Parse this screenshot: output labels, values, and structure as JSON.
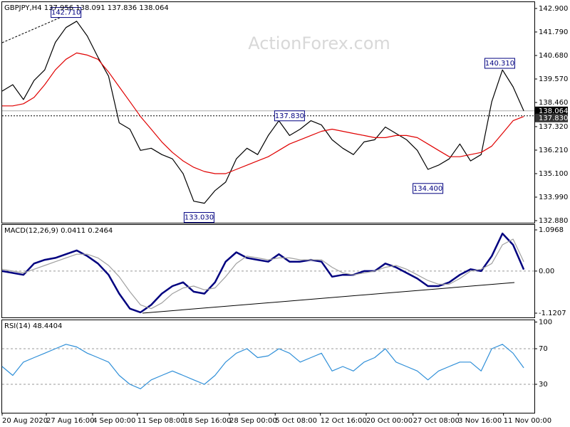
{
  "chart_data": [
    {
      "type": "line",
      "title": "GBPJPY,H4  137.956 138.091 137.836 138.064",
      "watermark": "ActionForex.com",
      "x": [
        0,
        2,
        4,
        6,
        8,
        10,
        12,
        14,
        16,
        18,
        20,
        22,
        24,
        26,
        28,
        30,
        32,
        34,
        36,
        38,
        40,
        42,
        44,
        46,
        48,
        50,
        52,
        54,
        56,
        58,
        60,
        62,
        64,
        66,
        68,
        70,
        72,
        74,
        76,
        78,
        80,
        82,
        84,
        86,
        88,
        90,
        92,
        94,
        96,
        98
      ],
      "xlim": [
        0,
        100
      ],
      "ylim": [
        132.78,
        143.2
      ],
      "yticks": [
        {
          "value": 142.9,
          "label": "142.900"
        },
        {
          "value": 141.79,
          "label": "141.790"
        },
        {
          "value": 140.68,
          "label": "140.680"
        },
        {
          "value": 139.57,
          "label": "139.570"
        },
        {
          "value": 138.46,
          "label": "138.460"
        },
        {
          "value": 137.32,
          "label": "137.320"
        },
        {
          "value": 136.21,
          "label": "136.210"
        },
        {
          "value": 135.1,
          "label": "135.100"
        },
        {
          "value": 133.99,
          "label": "133.990"
        },
        {
          "value": 132.88,
          "label": "132.880"
        }
      ],
      "series": [
        {
          "name": "GBPJPY",
          "color": "#000000",
          "values": [
            139.0,
            139.3,
            138.6,
            139.5,
            140.0,
            141.3,
            142.0,
            142.3,
            141.6,
            140.6,
            139.7,
            137.5,
            137.2,
            136.2,
            136.3,
            136.0,
            135.8,
            135.1,
            133.8,
            133.7,
            134.3,
            134.7,
            135.8,
            136.3,
            136.0,
            136.9,
            137.6,
            136.9,
            137.2,
            137.6,
            137.4,
            136.7,
            136.3,
            136.0,
            136.6,
            136.7,
            137.3,
            137.0,
            136.7,
            136.2,
            135.3,
            135.5,
            135.8,
            136.5,
            135.7,
            136.0,
            138.5,
            140.0,
            139.2,
            138.064
          ]
        },
        {
          "name": "MA",
          "color": "#e00000",
          "values": [
            138.3,
            138.3,
            138.4,
            138.7,
            139.3,
            140.0,
            140.5,
            140.8,
            140.7,
            140.5,
            139.9,
            139.2,
            138.5,
            137.8,
            137.2,
            136.6,
            136.1,
            135.7,
            135.4,
            135.2,
            135.1,
            135.1,
            135.3,
            135.5,
            135.7,
            135.9,
            136.2,
            136.5,
            136.7,
            136.9,
            137.1,
            137.2,
            137.1,
            137.0,
            136.9,
            136.8,
            136.8,
            136.9,
            136.9,
            136.8,
            136.5,
            136.2,
            135.9,
            135.9,
            136.0,
            136.1,
            136.4,
            137.0,
            137.6,
            137.8
          ]
        }
      ],
      "current_price": 138.064,
      "level_line": {
        "value": 137.83,
        "label": "137.830"
      },
      "annotations": [
        {
          "x": 12,
          "value": 142.71,
          "label": "142.710"
        },
        {
          "x": 37,
          "value": 133.03,
          "label": "133.030"
        },
        {
          "x": 54,
          "value": 137.83,
          "label": "137.830"
        },
        {
          "x": 80,
          "value": 134.4,
          "label": "134.400"
        },
        {
          "x": 93.5,
          "value": 140.31,
          "label": "140.310"
        }
      ]
    },
    {
      "type": "line",
      "title": "MACD(12,26,9) 0.0411 0.2464",
      "x": [
        0,
        2,
        4,
        6,
        8,
        10,
        12,
        14,
        16,
        18,
        20,
        22,
        24,
        26,
        28,
        30,
        32,
        34,
        36,
        38,
        40,
        42,
        44,
        46,
        48,
        50,
        52,
        54,
        56,
        58,
        60,
        62,
        64,
        66,
        68,
        70,
        72,
        74,
        76,
        78,
        80,
        82,
        84,
        86,
        88,
        90,
        92,
        94,
        96,
        98
      ],
      "xlim": [
        0,
        100
      ],
      "ylim": [
        -1.234,
        1.23
      ],
      "yticks": [
        1.0968,
        {
          "value": 0,
          "label": "0.00"
        },
        -1.1207
      ],
      "levels": [
        0
      ],
      "series": [
        {
          "name": "MACD",
          "color": "#00007f",
          "values": [
            0.0,
            -0.05,
            -0.1,
            0.2,
            0.3,
            0.35,
            0.45,
            0.55,
            0.4,
            0.2,
            -0.1,
            -0.6,
            -1.0,
            -1.1,
            -0.9,
            -0.6,
            -0.4,
            -0.3,
            -0.55,
            -0.6,
            -0.3,
            0.25,
            0.5,
            0.35,
            0.3,
            0.25,
            0.45,
            0.25,
            0.25,
            0.3,
            0.25,
            -0.15,
            -0.1,
            -0.1,
            0.0,
            0.0,
            0.2,
            0.1,
            -0.05,
            -0.2,
            -0.4,
            -0.4,
            -0.3,
            -0.1,
            0.05,
            0.0,
            0.4,
            1.0,
            0.7,
            0.04
          ]
        },
        {
          "name": "Signal",
          "color": "#a0a0a0",
          "values": [
            0.05,
            0.0,
            -0.05,
            0.05,
            0.15,
            0.25,
            0.35,
            0.45,
            0.45,
            0.35,
            0.15,
            -0.15,
            -0.55,
            -0.9,
            -1.0,
            -0.85,
            -0.6,
            -0.45,
            -0.4,
            -0.5,
            -0.45,
            -0.15,
            0.2,
            0.4,
            0.35,
            0.3,
            0.35,
            0.35,
            0.3,
            0.3,
            0.3,
            0.1,
            -0.05,
            -0.1,
            -0.05,
            0.0,
            0.1,
            0.15,
            0.05,
            -0.1,
            -0.25,
            -0.35,
            -0.35,
            -0.2,
            0.0,
            0.05,
            0.2,
            0.7,
            0.85,
            0.25
          ]
        }
      ]
    },
    {
      "type": "line",
      "title": "RSI(14) 48.4404",
      "x": [
        0,
        2,
        4,
        6,
        8,
        10,
        12,
        14,
        16,
        18,
        20,
        22,
        24,
        26,
        28,
        30,
        32,
        34,
        36,
        38,
        40,
        42,
        44,
        46,
        48,
        50,
        52,
        54,
        56,
        58,
        60,
        62,
        64,
        66,
        68,
        70,
        72,
        74,
        76,
        78,
        80,
        82,
        84,
        86,
        88,
        90,
        92,
        94,
        96,
        98
      ],
      "xlim": [
        0,
        100
      ],
      "ylim": [
        -2,
        102
      ],
      "yticks": [
        100,
        70,
        30
      ],
      "levels": [
        70,
        30
      ],
      "xticks": [
        {
          "value": 0,
          "label": "20 Aug 2020"
        },
        {
          "value": 8.3,
          "label": "27 Aug 16:00"
        },
        {
          "value": 17.0,
          "label": "4 Sep 00:00"
        },
        {
          "value": 25.4,
          "label": "11 Sep 08:00"
        },
        {
          "value": 34.1,
          "label": "18 Sep 16:00"
        },
        {
          "value": 42.7,
          "label": "28 Sep 00:00"
        },
        {
          "value": 51.3,
          "label": "5 Oct 08:00"
        },
        {
          "value": 59.8,
          "label": "12 Oct 16:00"
        },
        {
          "value": 68.4,
          "label": "20 Oct 00:00"
        },
        {
          "value": 77.2,
          "label": "27 Oct 08:00"
        },
        {
          "value": 85.7,
          "label": "3 Nov 16:00"
        },
        {
          "value": 94.2,
          "label": "11 Nov 00:00"
        }
      ],
      "series": [
        {
          "name": "RSI",
          "color": "#2f8fd8",
          "values": [
            50,
            40,
            55,
            60,
            65,
            70,
            75,
            72,
            65,
            60,
            55,
            40,
            30,
            25,
            35,
            40,
            45,
            40,
            35,
            30,
            40,
            55,
            65,
            70,
            60,
            62,
            70,
            65,
            55,
            60,
            65,
            45,
            50,
            45,
            55,
            60,
            70,
            55,
            50,
            45,
            35,
            45,
            50,
            55,
            55,
            45,
            70,
            75,
            65,
            48.4404
          ]
        }
      ]
    }
  ]
}
